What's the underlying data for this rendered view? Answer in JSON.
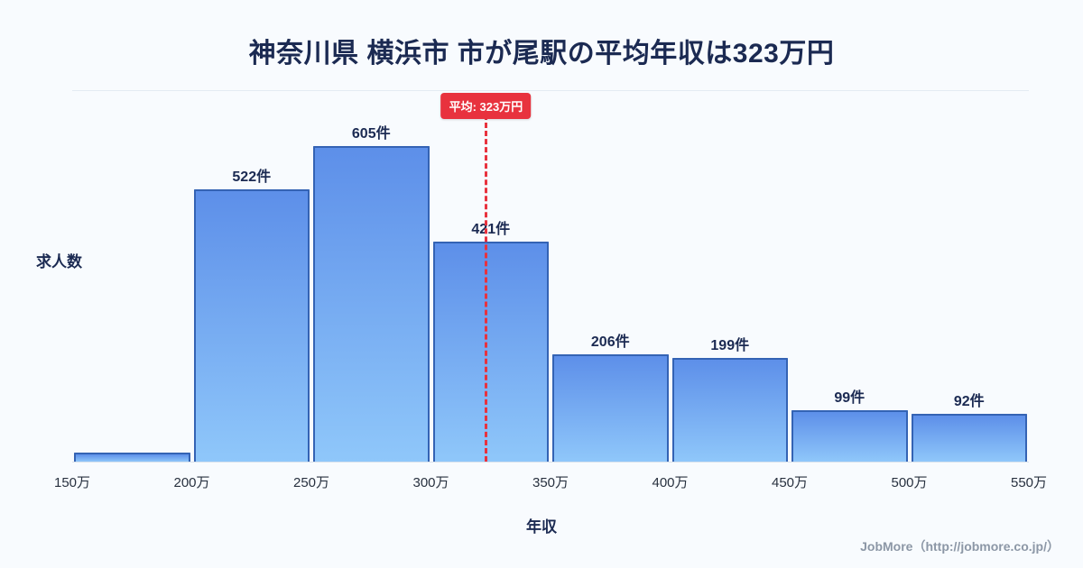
{
  "title": "神奈川県 横浜市 市が尾駅の平均年収は323万円",
  "chart_data": {
    "type": "bar",
    "title": "神奈川県 横浜市 市が尾駅の平均年収は323万円",
    "xlabel": "年収",
    "ylabel": "求人数",
    "x_range": [
      150,
      550
    ],
    "x_tick_labels": [
      "150万",
      "200万",
      "250万",
      "300万",
      "350万",
      "400万",
      "450万",
      "500万",
      "550万"
    ],
    "bin_edges": [
      150,
      200,
      250,
      300,
      350,
      400,
      450,
      500,
      550
    ],
    "values": [
      17,
      522,
      605,
      421,
      206,
      199,
      99,
      92
    ],
    "bar_labels": [
      "",
      "522件",
      "605件",
      "421件",
      "206件",
      "199件",
      "99件",
      "92件"
    ],
    "ylim": [
      0,
      712
    ],
    "grid": "off",
    "legend": "none",
    "average_line": {
      "x_value": 323,
      "label": "平均: 323万円",
      "color": "#e8323e"
    },
    "colors": {
      "bar_top": "#5d8fe9",
      "bar_bottom": "#8fc7fa",
      "bar_border": "#3463b4",
      "background": "#f8fbfe",
      "text": "#1b2a52"
    }
  },
  "footer": {
    "credit": "JobMore（http://jobmore.co.jp/）"
  }
}
